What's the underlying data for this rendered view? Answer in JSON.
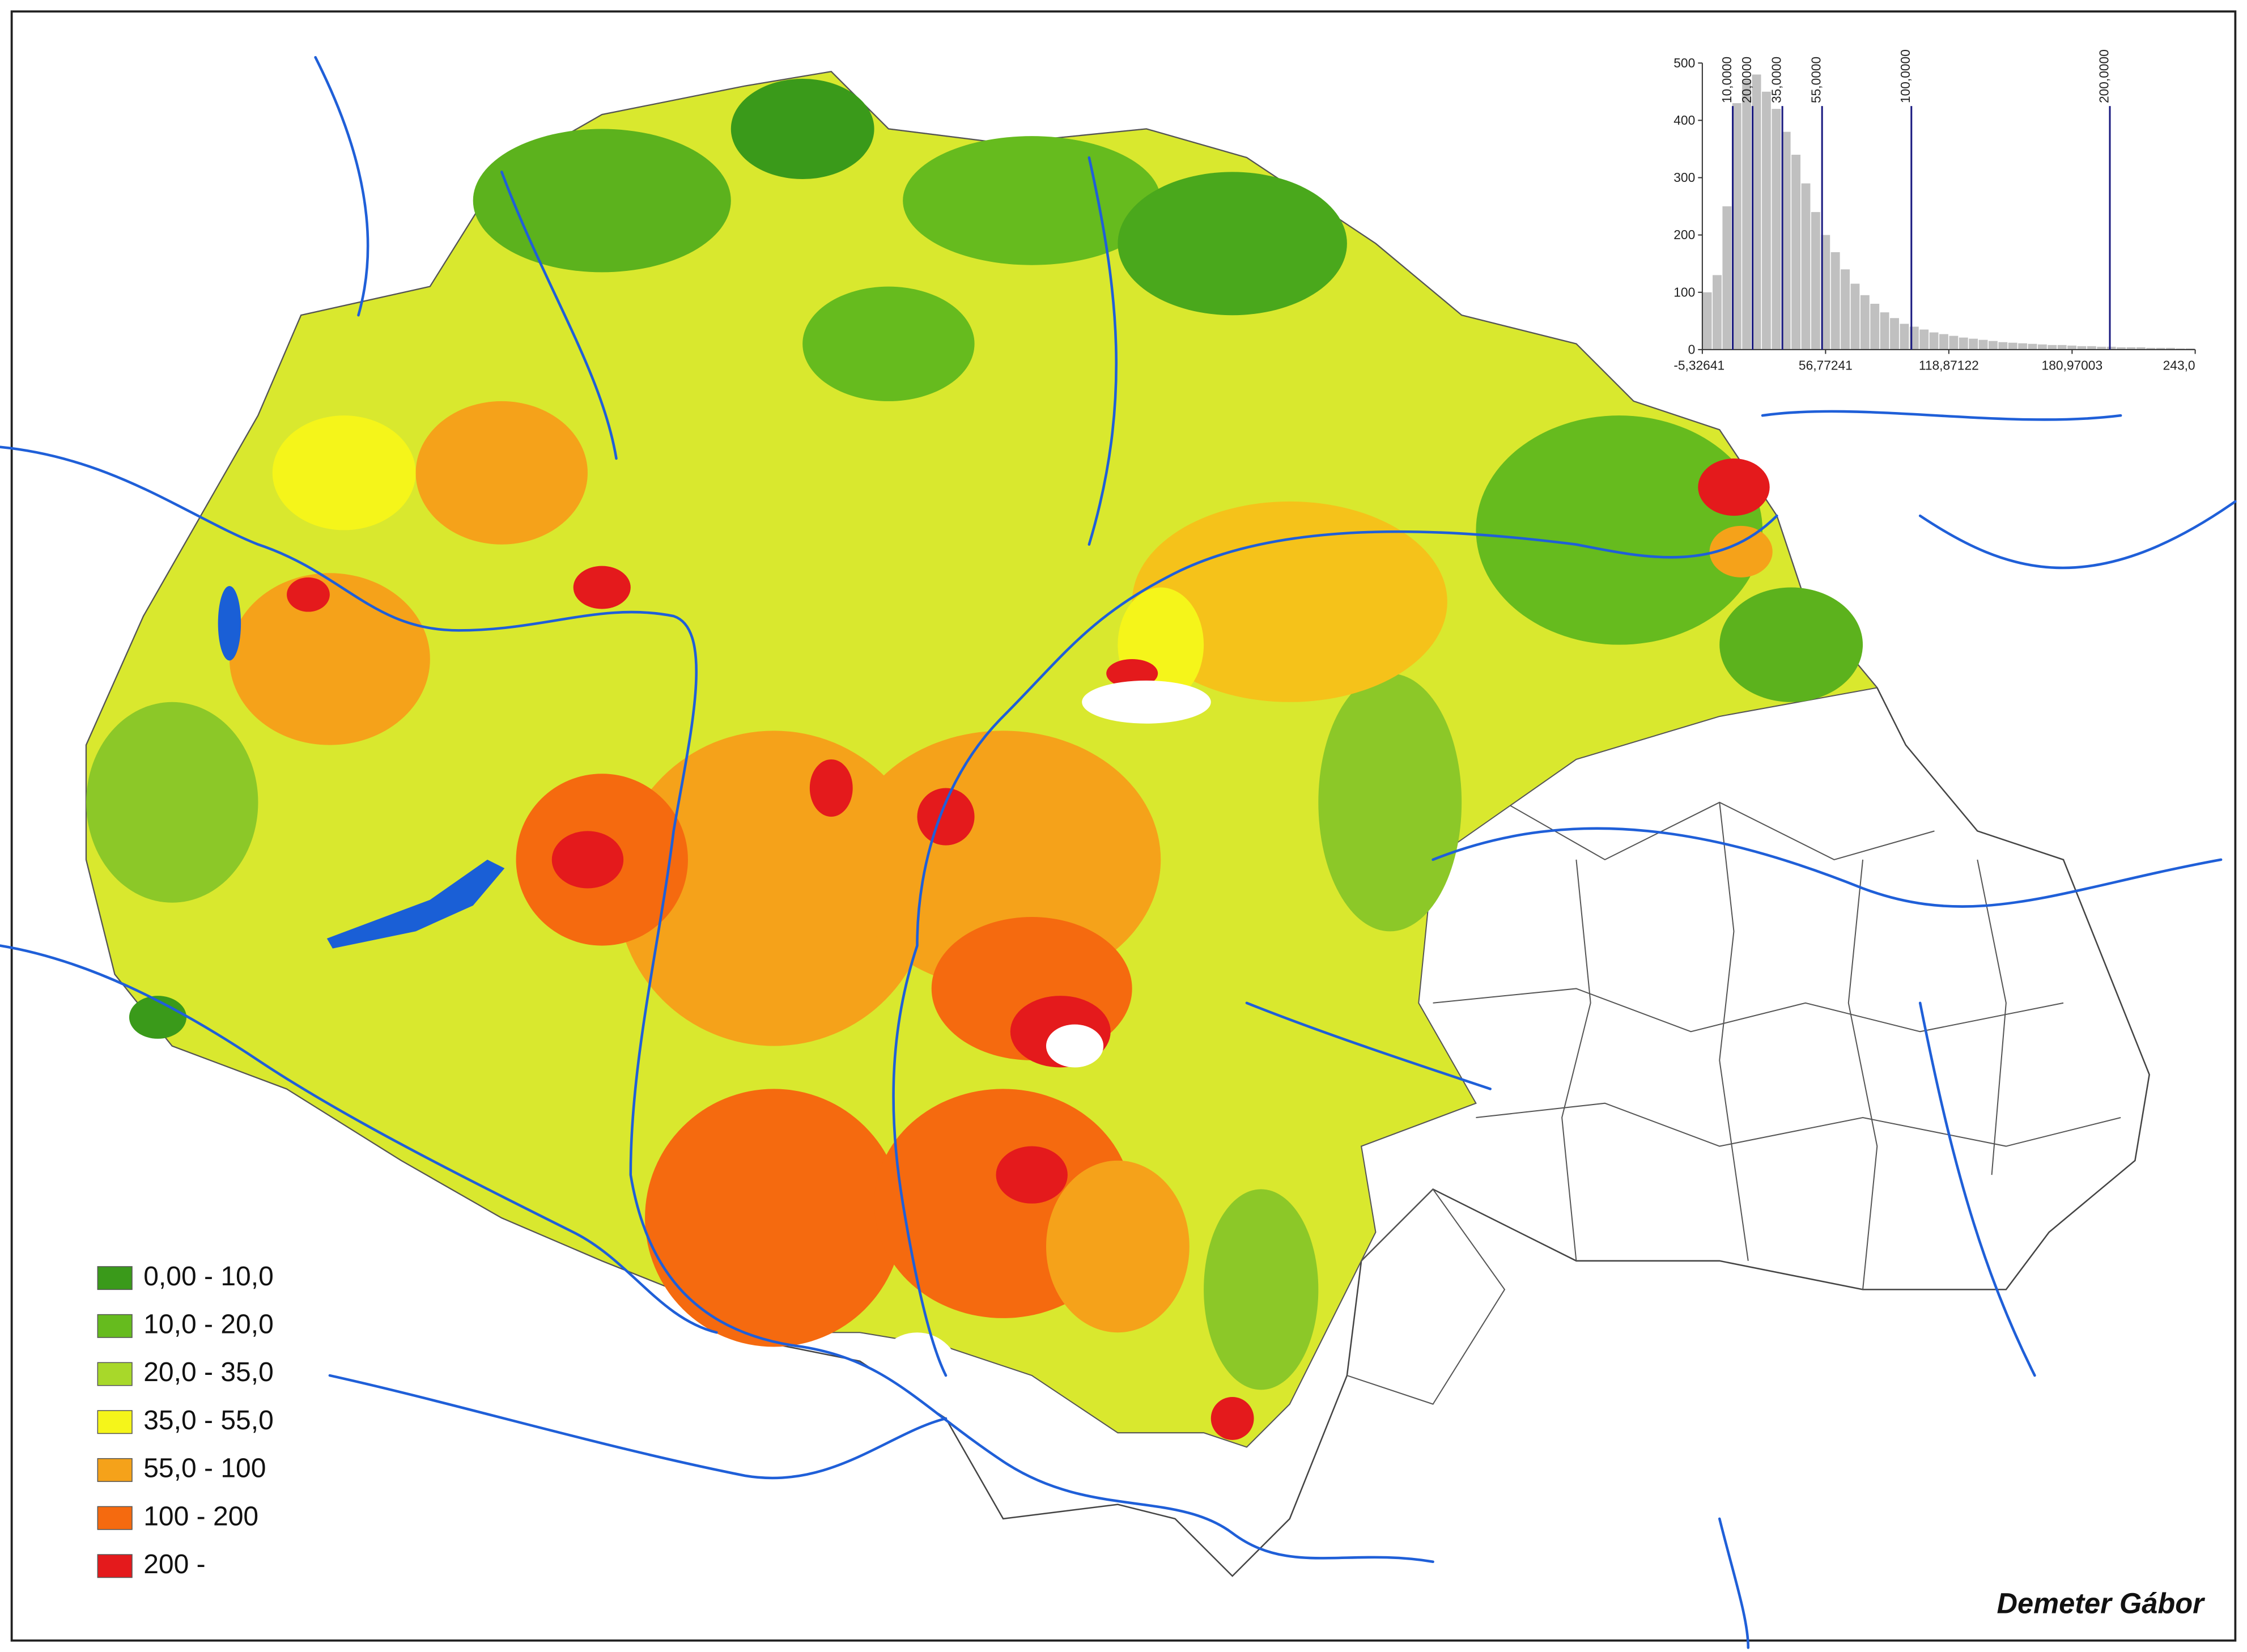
{
  "legend": {
    "items": [
      {
        "label": "0,00 - 10,0",
        "color": "#3a9a1a"
      },
      {
        "label": "10,0 - 20,0",
        "color": "#66bb1e"
      },
      {
        "label": "20,0 - 35,0",
        "color": "#a8d82a"
      },
      {
        "label": "35,0 - 55,0",
        "color": "#f5f51a"
      },
      {
        "label": "55,0 - 100",
        "color": "#f5a21a"
      },
      {
        "label": "100  - 200",
        "color": "#f56a0f"
      },
      {
        "label": "200  -",
        "color": "#e41a1c"
      }
    ]
  },
  "histogram": {
    "type": "histogram",
    "color": "#c0c0c0",
    "break_color": "#1a1a80",
    "bins": [
      -5.33,
      -0.36,
      4.6,
      9.57,
      14.53,
      19.5,
      24.47,
      29.43,
      34.4,
      39.36,
      44.33,
      49.3,
      54.26,
      59.23,
      64.19,
      69.16,
      74.13,
      79.09,
      84.06,
      89.02,
      93.99,
      98.96,
      103.92,
      108.89,
      113.85,
      118.82,
      123.79,
      128.75,
      133.72,
      138.68,
      143.65,
      148.62,
      153.58,
      158.55,
      163.51,
      168.48,
      173.45,
      178.41,
      183.38,
      188.34,
      193.31,
      198.28,
      203.24,
      208.21,
      213.17,
      218.14,
      223.11,
      228.07,
      233.04,
      238.0,
      242.97
    ],
    "values": [
      100,
      130,
      250,
      430,
      470,
      480,
      450,
      420,
      380,
      340,
      290,
      240,
      200,
      170,
      140,
      115,
      95,
      80,
      65,
      55,
      45,
      40,
      35,
      30,
      27,
      24,
      21,
      19,
      17,
      15,
      13,
      12,
      11,
      10,
      9,
      8,
      8,
      7,
      6,
      6,
      5,
      5,
      4,
      4,
      4,
      3,
      3,
      3,
      2,
      2
    ],
    "xlim": [
      -5.32641,
      243.0
    ],
    "xticks": [
      {
        "value": -5.32641,
        "label": "-5,32641"
      },
      {
        "value": 56.77241,
        "label": "56,77241"
      },
      {
        "value": 118.87122,
        "label": "118,87122"
      },
      {
        "value": 180.97003,
        "label": "180,97003"
      },
      {
        "value": 243.0,
        "label": "243,0"
      }
    ],
    "ylim": [
      0,
      500
    ],
    "yticks": [
      0,
      100,
      200,
      300,
      400,
      500
    ],
    "breaks": [
      {
        "value": 10,
        "label": "10,0000"
      },
      {
        "value": 20,
        "label": "20,0000"
      },
      {
        "value": 35,
        "label": "35,0000"
      },
      {
        "value": 55,
        "label": "55,0000"
      },
      {
        "value": 100,
        "label": "100,0000"
      },
      {
        "value": 200,
        "label": "200,0000"
      }
    ]
  },
  "credit": "Demeter Gábor"
}
